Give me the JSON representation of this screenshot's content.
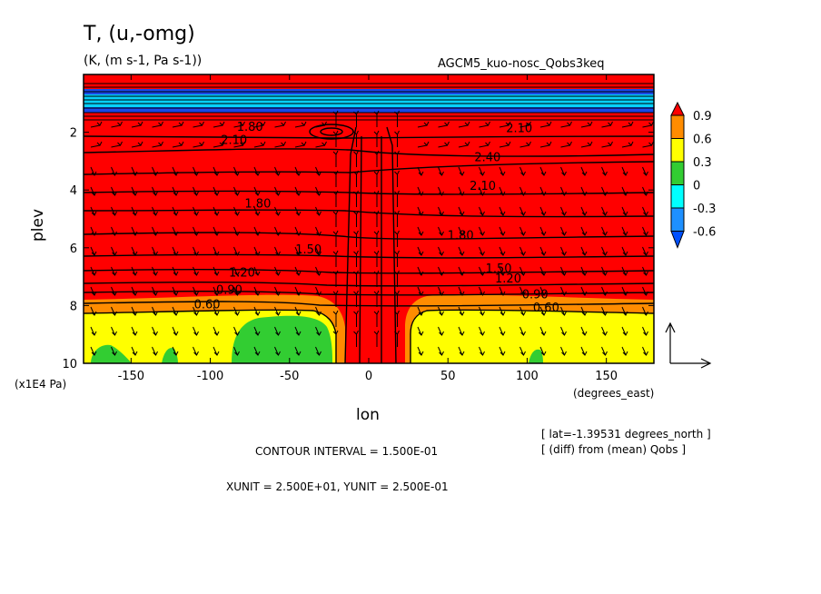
{
  "header": {
    "title": "T, (u,-omg)",
    "units": "(K, (m s-1, Pa s-1))",
    "experiment": "AGCM5_kuo-nosc_Qobs3keq"
  },
  "axes": {
    "xlabel": "lon",
    "ylabel": "plev",
    "x_unit_note": "(degrees_east)",
    "y_unit_note": "(x1E4 Pa)"
  },
  "footer": {
    "contour_interval": "CONTOUR INTERVAL = 1.500E-01",
    "vector_units": "XUNIT = 2.500E+01, YUNIT = 2.500E-01",
    "lat_note": "[ lat=-1.39531 degrees_north ]",
    "diff_note": "[ (diff) from (mean) Qobs ]"
  },
  "colorbar": {
    "levels": [
      "0.9",
      "0.6",
      "0.3",
      "0",
      "-0.3",
      "-0.6"
    ],
    "colors": [
      "#ff0000",
      "#ff8c00",
      "#ffff00",
      "#32cd32",
      "#00ffff",
      "#1e90ff",
      "#0050ff"
    ]
  },
  "chart_data": {
    "type": "contour",
    "title": "T, (u,-omg)",
    "xlabel": "lon",
    "ylabel": "plev",
    "xlim": [
      -180,
      180
    ],
    "ylim": [
      10,
      0
    ],
    "x_ticks": [
      -150,
      -100,
      -50,
      0,
      50,
      100,
      150
    ],
    "x_tick_labels": [
      "-150",
      "-100",
      "-50",
      "0",
      "50",
      "100",
      "150"
    ],
    "y_ticks": [
      2,
      4,
      6,
      8,
      10
    ],
    "y_tick_labels": [
      "2",
      "4",
      "6",
      "8",
      "10"
    ],
    "contour_labels": [
      {
        "text": "2.10",
        "lon": -85,
        "plev": 2.4
      },
      {
        "text": "1.80",
        "lon": -75,
        "plev": 1.95
      },
      {
        "text": "1.80",
        "lon": -70,
        "plev": 4.6
      },
      {
        "text": "1.50",
        "lon": -38,
        "plev": 6.2
      },
      {
        "text": "1.20",
        "lon": -80,
        "plev": 7.0
      },
      {
        "text": "0.90",
        "lon": -88,
        "plev": 7.6
      },
      {
        "text": "0.60",
        "lon": -102,
        "plev": 8.1
      },
      {
        "text": "2.40",
        "lon": 75,
        "plev": 3.0
      },
      {
        "text": "2.10",
        "lon": 72,
        "plev": 4.0
      },
      {
        "text": "2.10",
        "lon": 95,
        "plev": 2.0
      },
      {
        "text": "1.80",
        "lon": 58,
        "plev": 5.7
      },
      {
        "text": "1.50",
        "lon": 82,
        "plev": 6.85
      },
      {
        "text": "1.20",
        "lon": 88,
        "plev": 7.2
      },
      {
        "text": "0.90",
        "lon": 105,
        "plev": 7.75
      },
      {
        "text": "0.60",
        "lon": 112,
        "plev": 8.2
      }
    ]
  }
}
